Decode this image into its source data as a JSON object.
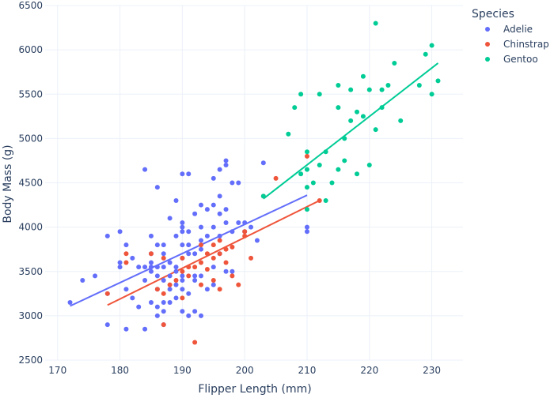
{
  "chart_data": {
    "type": "scatter",
    "xlabel": "Flipper Length (mm)",
    "ylabel": "Body Mass (g)",
    "xlim": [
      168,
      235
    ],
    "ylim": [
      2500,
      6500
    ],
    "xticks": [
      170,
      180,
      190,
      200,
      210,
      220,
      230
    ],
    "yticks": [
      2500,
      3000,
      3500,
      4000,
      4500,
      5000,
      5500,
      6000,
      6500
    ],
    "grid": true,
    "legend": {
      "title": "Species",
      "placement": "top-right"
    },
    "series": [
      {
        "name": "Adelie",
        "color": "#636efa",
        "trendline": {
          "x": [
            172,
            210
          ],
          "y": [
            3110,
            4360
          ]
        },
        "points": [
          [
            172,
            3150
          ],
          [
            174,
            3400
          ],
          [
            176,
            3450
          ],
          [
            178,
            3900
          ],
          [
            178,
            3250
          ],
          [
            178,
            2900
          ],
          [
            180,
            3600
          ],
          [
            180,
            3950
          ],
          [
            180,
            3550
          ],
          [
            181,
            3800
          ],
          [
            181,
            3300
          ],
          [
            181,
            2850
          ],
          [
            182,
            3200
          ],
          [
            182,
            3650
          ],
          [
            183,
            3550
          ],
          [
            183,
            3100
          ],
          [
            184,
            3400
          ],
          [
            184,
            3550
          ],
          [
            184,
            4650
          ],
          [
            184,
            2850
          ],
          [
            185,
            3900
          ],
          [
            185,
            3700
          ],
          [
            185,
            3550
          ],
          [
            185,
            3500
          ],
          [
            185,
            3150
          ],
          [
            185,
            3600
          ],
          [
            186,
            3000
          ],
          [
            186,
            3800
          ],
          [
            186,
            3550
          ],
          [
            186,
            3450
          ],
          [
            186,
            3100
          ],
          [
            186,
            4450
          ],
          [
            186,
            3300
          ],
          [
            187,
            3150
          ],
          [
            187,
            3700
          ],
          [
            187,
            3400
          ],
          [
            187,
            3050
          ],
          [
            187,
            3550
          ],
          [
            187,
            3800
          ],
          [
            187,
            2900
          ],
          [
            188,
            4100
          ],
          [
            188,
            3600
          ],
          [
            188,
            3300
          ],
          [
            188,
            3150
          ],
          [
            188,
            3450
          ],
          [
            189,
            3900
          ],
          [
            189,
            3500
          ],
          [
            189,
            3200
          ],
          [
            189,
            4300
          ],
          [
            189,
            3350
          ],
          [
            189,
            3550
          ],
          [
            190,
            4600
          ],
          [
            190,
            3800
          ],
          [
            190,
            3650
          ],
          [
            190,
            3050
          ],
          [
            190,
            3950
          ],
          [
            190,
            3450
          ],
          [
            190,
            3300
          ],
          [
            190,
            3400
          ],
          [
            190,
            4000
          ],
          [
            190,
            4050
          ],
          [
            191,
            4600
          ],
          [
            191,
            3700
          ],
          [
            191,
            3000
          ],
          [
            191,
            3800
          ],
          [
            191,
            3950
          ],
          [
            191,
            3250
          ],
          [
            192,
            4150
          ],
          [
            192,
            3700
          ],
          [
            192,
            3450
          ],
          [
            192,
            3050
          ],
          [
            192,
            3400
          ],
          [
            193,
            3750
          ],
          [
            193,
            3850
          ],
          [
            193,
            4000
          ],
          [
            193,
            4250
          ],
          [
            193,
            3000
          ],
          [
            193,
            3450
          ],
          [
            194,
            4200
          ],
          [
            194,
            3900
          ],
          [
            194,
            3300
          ],
          [
            195,
            4000
          ],
          [
            195,
            4250
          ],
          [
            195,
            3350
          ],
          [
            195,
            4550
          ],
          [
            195,
            3550
          ],
          [
            196,
            4650
          ],
          [
            196,
            3900
          ],
          [
            196,
            4150
          ],
          [
            196,
            3700
          ],
          [
            196,
            4350
          ],
          [
            197,
            4700
          ],
          [
            197,
            3500
          ],
          [
            197,
            4050
          ],
          [
            197,
            4200
          ],
          [
            197,
            4750
          ],
          [
            198,
            4500
          ],
          [
            198,
            3950
          ],
          [
            198,
            3500
          ],
          [
            199,
            4050
          ],
          [
            199,
            4500
          ],
          [
            200,
            4050
          ],
          [
            200,
            3950
          ],
          [
            201,
            4000
          ],
          [
            202,
            3850
          ],
          [
            203,
            4725
          ],
          [
            210,
            4000
          ],
          [
            210,
            3950
          ]
        ]
      },
      {
        "name": "Chinstrap",
        "color": "#ef553b",
        "trendline": {
          "x": [
            178,
            212
          ],
          "y": [
            3120,
            4300
          ]
        },
        "points": [
          [
            178,
            3250
          ],
          [
            181,
            3700
          ],
          [
            181,
            3600
          ],
          [
            185,
            3700
          ],
          [
            186,
            3300
          ],
          [
            187,
            3650
          ],
          [
            187,
            2900
          ],
          [
            187,
            3250
          ],
          [
            188,
            3350
          ],
          [
            189,
            3400
          ],
          [
            190,
            3650
          ],
          [
            190,
            3500
          ],
          [
            190,
            3200
          ],
          [
            191,
            3550
          ],
          [
            191,
            3450
          ],
          [
            192,
            3550
          ],
          [
            192,
            2700
          ],
          [
            193,
            3800
          ],
          [
            193,
            3600
          ],
          [
            193,
            3350
          ],
          [
            194,
            3700
          ],
          [
            194,
            3525
          ],
          [
            195,
            3800
          ],
          [
            195,
            3650
          ],
          [
            195,
            3400
          ],
          [
            196,
            3700
          ],
          [
            196,
            3300
          ],
          [
            196,
            3850
          ],
          [
            197,
            3750
          ],
          [
            197,
            3600
          ],
          [
            198,
            3450
          ],
          [
            198,
            3775
          ],
          [
            199,
            3350
          ],
          [
            200,
            3900
          ],
          [
            200,
            3950
          ],
          [
            201,
            3650
          ],
          [
            203,
            4350
          ],
          [
            205,
            4550
          ],
          [
            210,
            4800
          ],
          [
            212,
            4300
          ]
        ]
      },
      {
        "name": "Gentoo",
        "color": "#00cc96",
        "trendline": {
          "x": [
            203,
            231
          ],
          "y": [
            4320,
            5850
          ]
        },
        "points": [
          [
            203,
            4350
          ],
          [
            207,
            5050
          ],
          [
            208,
            5350
          ],
          [
            209,
            4600
          ],
          [
            209,
            5500
          ],
          [
            210,
            4650
          ],
          [
            210,
            4450
          ],
          [
            210,
            4850
          ],
          [
            210,
            4200
          ],
          [
            211,
            4500
          ],
          [
            212,
            4700
          ],
          [
            212,
            5500
          ],
          [
            213,
            4300
          ],
          [
            213,
            4850
          ],
          [
            214,
            4500
          ],
          [
            215,
            4650
          ],
          [
            215,
            5350
          ],
          [
            215,
            5600
          ],
          [
            216,
            4750
          ],
          [
            216,
            5000
          ],
          [
            217,
            5200
          ],
          [
            217,
            5550
          ],
          [
            218,
            5300
          ],
          [
            218,
            4600
          ],
          [
            219,
            5250
          ],
          [
            219,
            5700
          ],
          [
            220,
            4700
          ],
          [
            220,
            5550
          ],
          [
            221,
            5100
          ],
          [
            221,
            6300
          ],
          [
            222,
            5350
          ],
          [
            222,
            5550
          ],
          [
            223,
            5600
          ],
          [
            224,
            5850
          ],
          [
            225,
            5200
          ],
          [
            228,
            5600
          ],
          [
            229,
            5950
          ],
          [
            230,
            6050
          ],
          [
            230,
            5500
          ],
          [
            231,
            5650
          ]
        ]
      }
    ]
  }
}
